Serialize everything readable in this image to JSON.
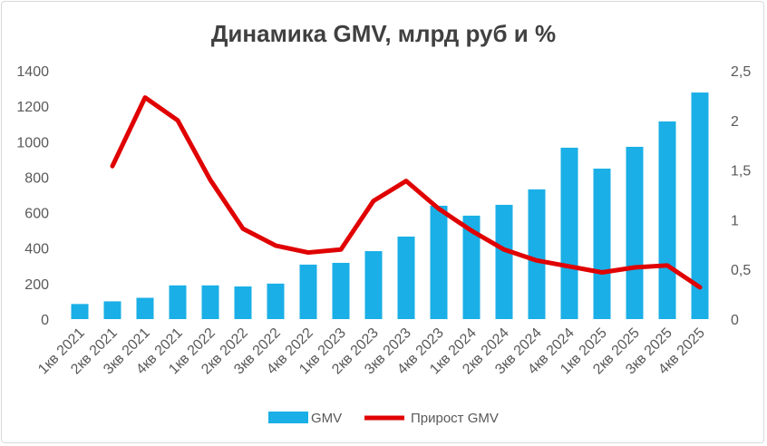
{
  "chart_data": {
    "type": "bar+line",
    "title": "Динамика GMV, млрд руб и %",
    "categories": [
      "1кв 2021",
      "2кв 2021",
      "3кв 2021",
      "4кв 2021",
      "1кв 2022",
      "2кв 2022",
      "3кв 2022",
      "4кв 2022",
      "1кв 2023",
      "2кв 2023",
      "3кв 2023",
      "4кв 2023",
      "1кв 2024",
      "2кв 2024",
      "3кв 2024",
      "4кв 2024",
      "1кв 2025",
      "2кв 2025",
      "3кв 2025",
      "4кв 2025"
    ],
    "series": [
      {
        "name": "GMV",
        "type": "bar",
        "axis": "left",
        "color": "#1aafe6",
        "values": [
          85,
          100,
          120,
          190,
          190,
          184,
          200,
          307,
          317,
          383,
          465,
          639,
          583,
          644,
          731,
          966,
          848,
          971,
          1114,
          1277
        ]
      },
      {
        "name": "Прирост GMV",
        "type": "line",
        "axis": "right",
        "color": "#e00000",
        "values": [
          null,
          1.54,
          2.23,
          2.0,
          1.4,
          0.91,
          0.74,
          0.67,
          0.7,
          1.19,
          1.39,
          1.11,
          0.89,
          0.7,
          0.59,
          0.53,
          0.47,
          0.52,
          0.54,
          0.32
        ]
      }
    ],
    "y_left": {
      "min": 0,
      "max": 1400,
      "ticks": [
        "0",
        "200",
        "400",
        "600",
        "800",
        "1000",
        "1200",
        "1400"
      ]
    },
    "y_right": {
      "min": 0,
      "max": 2.5,
      "ticks": [
        "0",
        "0,5",
        "1",
        "1,5",
        "2",
        "2,5"
      ]
    },
    "grid": false,
    "legend": {
      "position": "bottom",
      "entries": [
        "GMV",
        "Прирост GMV"
      ]
    }
  }
}
